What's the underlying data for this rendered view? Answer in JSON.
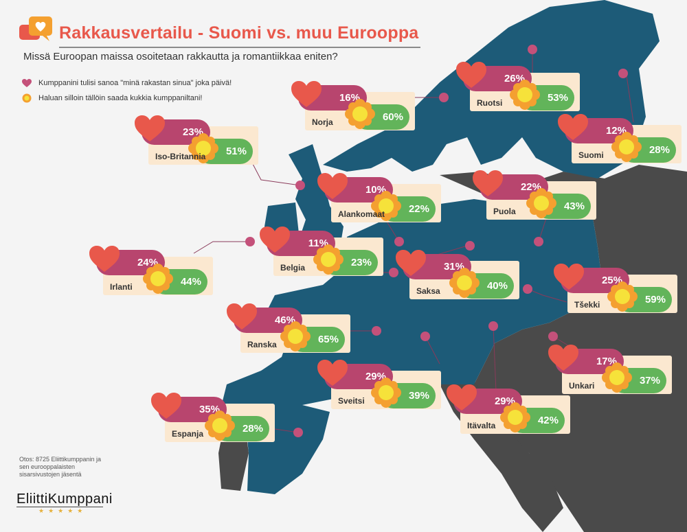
{
  "header": {
    "title": "Rakkausvertailu - Suomi vs. muu Eurooppa",
    "subtitle": "Missä Euroopan maissa osoitetaan rakkautta ja romantiikkaa eniten?"
  },
  "legend": [
    {
      "icon": "heart-icon",
      "label": "Kumppanini tulisi sanoa \"minä rakastan sinua\" joka päivä!"
    },
    {
      "icon": "flower-icon",
      "label": "Haluan silloin tällöin saada kukkia kumppaniltani!"
    }
  ],
  "colors": {
    "accent": "#e8584b",
    "love": "#b8456e",
    "flower": "#62b45a",
    "card": "#fbe8d0",
    "eu_land": "#1d5b78",
    "other_land": "#4a4a4a",
    "marker": "#c4517a"
  },
  "countries": [
    {
      "name": "Ruotsi",
      "love": "26%",
      "flowers": "53%"
    },
    {
      "name": "Norja",
      "love": "16%",
      "flowers": "60%"
    },
    {
      "name": "Iso-Britannia",
      "love": "23%",
      "flowers": "51%"
    },
    {
      "name": "Suomi",
      "love": "12%",
      "flowers": "28%"
    },
    {
      "name": "Alankomaat",
      "love": "10%",
      "flowers": "22%"
    },
    {
      "name": "Puola",
      "love": "22%",
      "flowers": "43%"
    },
    {
      "name": "Irlanti",
      "love": "24%",
      "flowers": "44%"
    },
    {
      "name": "Belgia",
      "love": "11%",
      "flowers": "23%"
    },
    {
      "name": "Saksa",
      "love": "31%",
      "flowers": "40%"
    },
    {
      "name": "Tšekki",
      "love": "25%",
      "flowers": "59%"
    },
    {
      "name": "Ranska",
      "love": "46%",
      "flowers": "65%"
    },
    {
      "name": "Sveitsi",
      "love": "29%",
      "flowers": "39%"
    },
    {
      "name": "Unkari",
      "love": "17%",
      "flowers": "37%"
    },
    {
      "name": "Espanja",
      "love": "35%",
      "flowers": "28%"
    },
    {
      "name": "Itävalta",
      "love": "29%",
      "flowers": "42%"
    }
  ],
  "footnote": "Otos: 8725 Eliittikumppanin ja sen eurooppalaisten sisarsivustojen jäsentä",
  "logo": {
    "text": "EliittiKumppani",
    "stars": "★★★★★"
  }
}
